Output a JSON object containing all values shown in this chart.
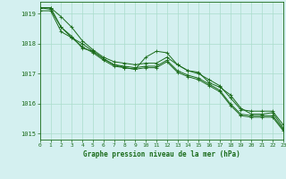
{
  "title": "Graphe pression niveau de la mer (hPa)",
  "background_color": "#d4f0f0",
  "grid_color": "#aaddcc",
  "line_color": "#1a6b1a",
  "xlim": [
    0,
    23
  ],
  "ylim": [
    1014.8,
    1019.4
  ],
  "yticks": [
    1015,
    1016,
    1017,
    1018,
    1019
  ],
  "xticks": [
    0,
    1,
    2,
    3,
    4,
    5,
    6,
    7,
    8,
    9,
    10,
    11,
    12,
    13,
    14,
    15,
    16,
    17,
    18,
    19,
    20,
    21,
    22,
    23
  ],
  "series": [
    [
      1019.2,
      1019.2,
      1018.9,
      1018.55,
      1018.1,
      1017.8,
      1017.55,
      1017.4,
      1017.35,
      1017.3,
      1017.35,
      1017.35,
      1017.55,
      1017.3,
      1017.1,
      1017.0,
      1016.8,
      1016.6,
      1016.2,
      1015.8,
      1015.75,
      1015.75,
      1015.75,
      1015.3
    ],
    [
      1019.2,
      1019.2,
      1018.55,
      1018.2,
      1018.0,
      1017.75,
      1017.5,
      1017.3,
      1017.25,
      1017.2,
      1017.25,
      1017.25,
      1017.45,
      1017.1,
      1016.95,
      1016.85,
      1016.65,
      1016.45,
      1016.0,
      1015.65,
      1015.6,
      1015.6,
      1015.6,
      1015.15
    ],
    [
      1019.1,
      1019.1,
      1018.4,
      1018.2,
      1017.9,
      1017.7,
      1017.45,
      1017.25,
      1017.2,
      1017.15,
      1017.2,
      1017.2,
      1017.4,
      1017.05,
      1016.9,
      1016.8,
      1016.6,
      1016.4,
      1015.95,
      1015.6,
      1015.55,
      1015.55,
      1015.55,
      1015.1
    ],
    [
      1019.2,
      1019.15,
      1018.55,
      1018.25,
      1017.85,
      1017.75,
      1017.5,
      1017.3,
      1017.2,
      1017.15,
      1017.55,
      1017.75,
      1017.7,
      1017.3,
      1017.1,
      1017.05,
      1016.7,
      1016.55,
      1016.3,
      1015.85,
      1015.65,
      1015.65,
      1015.7,
      1015.2
    ]
  ]
}
